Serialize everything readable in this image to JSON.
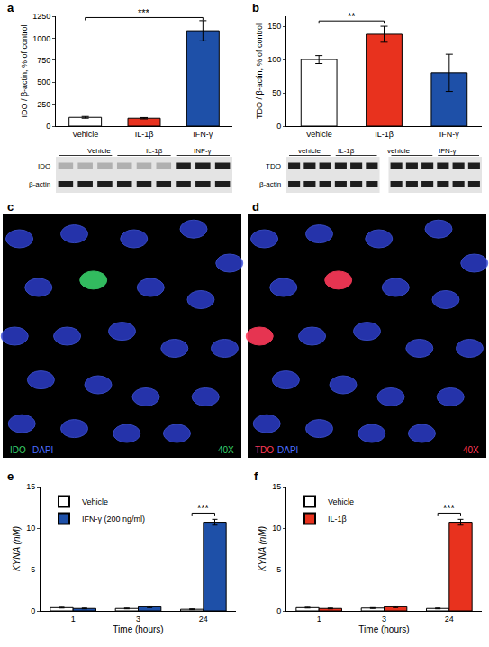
{
  "chart_data": [
    {
      "panel_label": "a",
      "type": "bar",
      "categories": [
        "Vehicle",
        "IL-1β",
        "IFN-γ"
      ],
      "values": [
        100,
        90,
        1085
      ],
      "errors": [
        10,
        8,
        115
      ],
      "colors": [
        "#ffffff",
        "#e8321e",
        "#1e50a8"
      ],
      "y_label": "IDO / β-actin, % of control",
      "ylim": [
        0,
        1250
      ],
      "yticks": [
        0,
        250,
        500,
        750,
        1000,
        1250
      ],
      "grid": false,
      "annotations": [
        {
          "text": "***",
          "from": "Vehicle",
          "to": "IFN-γ",
          "y": 1235
        }
      ]
    },
    {
      "panel_label": "b",
      "type": "bar",
      "categories": [
        "Vehicle",
        "IL-1β",
        "IFN-γ"
      ],
      "values": [
        100,
        138,
        80
      ],
      "errors": [
        6,
        12,
        28
      ],
      "colors": [
        "#ffffff",
        "#e8321e",
        "#1e50a8"
      ],
      "y_label": "TDO / β-actin, % of control",
      "ylim": [
        0,
        165
      ],
      "yticks": [
        0,
        50,
        100,
        150
      ],
      "grid": false,
      "annotations": [
        {
          "text": "**",
          "from": "Vehicle",
          "to": "IL-1β",
          "y": 158
        }
      ]
    },
    {
      "panel_label": "e",
      "type": "bar",
      "categories": [
        "1",
        "3",
        "24"
      ],
      "x_label": "Time (hours)",
      "y_label": "KYNA (nM)",
      "series": [
        {
          "name": "Vehicle",
          "color": "#ffffff",
          "values": [
            0.4,
            0.3,
            0.2
          ],
          "errors": [
            0.05,
            0.05,
            0.05
          ]
        },
        {
          "name": "IFN-γ (200 ng/ml)",
          "color": "#1e50a8",
          "values": [
            0.3,
            0.5,
            10.7
          ],
          "errors": [
            0.05,
            0.1,
            0.35
          ]
        }
      ],
      "ylim": [
        0,
        15
      ],
      "yticks": [
        0,
        5,
        10,
        15
      ],
      "grid": false,
      "legend": "upper left",
      "annotations": [
        {
          "text": "***",
          "category": "24",
          "y": 11.8
        }
      ]
    },
    {
      "panel_label": "f",
      "type": "bar",
      "categories": [
        "1",
        "3",
        "24"
      ],
      "x_label": "Time (hours)",
      "y_label": "KYNA (nM)",
      "series": [
        {
          "name": "Vehicle",
          "color": "#ffffff",
          "values": [
            0.4,
            0.35,
            0.3
          ],
          "errors": [
            0.05,
            0.05,
            0.05
          ]
        },
        {
          "name": "IL-1β",
          "color": "#e8321e",
          "values": [
            0.3,
            0.5,
            10.7
          ],
          "errors": [
            0.05,
            0.1,
            0.35
          ]
        }
      ],
      "ylim": [
        0,
        15
      ],
      "yticks": [
        0,
        5,
        10,
        15
      ],
      "grid": false,
      "legend": "upper left",
      "annotations": [
        {
          "text": "***",
          "category": "24",
          "y": 11.8
        }
      ]
    }
  ],
  "blots": [
    {
      "panel": "a",
      "lanes_per_group": 3,
      "membranes": [
        {
          "groups": [
            "Vehicle",
            "IL-1β",
            "INF-γ"
          ]
        }
      ],
      "rows": [
        {
          "label": "IDO",
          "strong_groups": [
            "INF-γ"
          ]
        },
        {
          "label": "β-actin",
          "strong_groups": [
            "Vehicle",
            "IL-1β",
            "INF-γ"
          ]
        }
      ]
    },
    {
      "panel": "b",
      "lanes_per_group": 3,
      "membranes": [
        {
          "groups": [
            "vehicle",
            "IL-1β"
          ]
        },
        {
          "groups": [
            "vehicle",
            "IFN-γ"
          ]
        }
      ],
      "rows": [
        {
          "label": "TDO",
          "strong_groups": [
            "vehicle",
            "IL-1β",
            "IFN-γ"
          ]
        },
        {
          "label": "β-actin",
          "strong_groups": [
            "vehicle",
            "IL-1β",
            "IFN-γ"
          ]
        }
      ]
    }
  ],
  "images": [
    {
      "panel": "c",
      "stain": {
        "text": "IDO",
        "color": "#38d06a"
      },
      "counterstain": {
        "text": "DAPI",
        "color": "#4a6cff"
      },
      "magnification": "40X"
    },
    {
      "panel": "d",
      "stain": {
        "text": "TDO",
        "color": "#ff3a5a"
      },
      "counterstain": {
        "text": "DAPI",
        "color": "#4a6cff"
      },
      "magnification": "40X"
    }
  ]
}
